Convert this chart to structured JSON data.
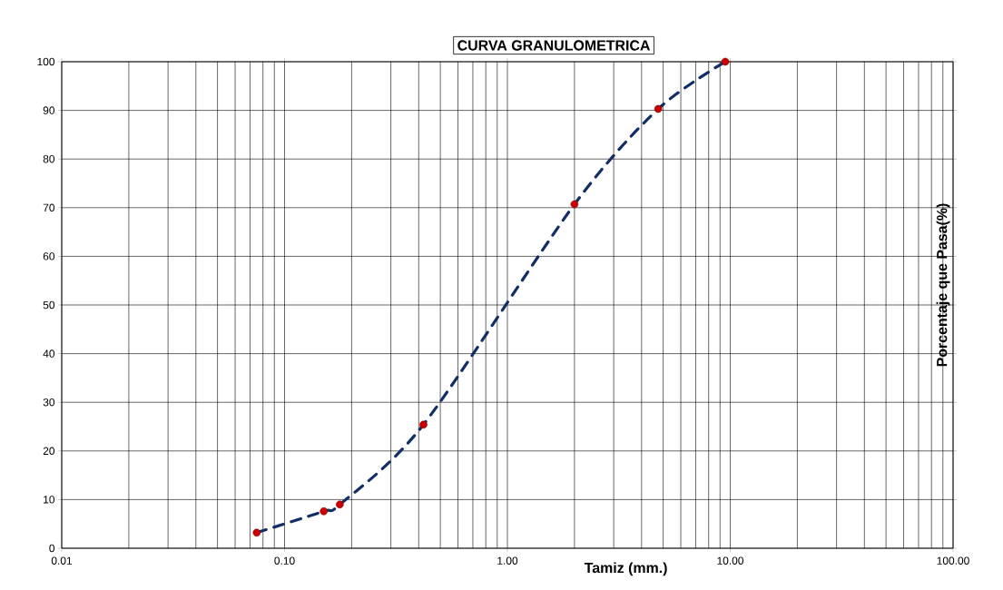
{
  "chart_data": {
    "type": "line",
    "title": "CURVA GRANULOMETRICA",
    "xlabel": "Tamiz (mm.)",
    "ylabel": "Porcentaje que Pasa(%)",
    "log": "x",
    "grid": true,
    "line_style": "dashed",
    "xlim": [
      0.01,
      100
    ],
    "ylim": [
      0,
      100
    ],
    "xticks": [
      {
        "value": 0.01,
        "label": "0.01"
      },
      {
        "value": 0.1,
        "label": "0.10"
      },
      {
        "value": 1,
        "label": "1.00"
      },
      {
        "value": 10,
        "label": "10.00"
      },
      {
        "value": 100,
        "label": "100.00"
      }
    ],
    "yticks": [
      0,
      10,
      20,
      30,
      40,
      50,
      60,
      70,
      80,
      90,
      100
    ],
    "x": [
      0.075,
      0.15,
      0.177,
      0.42,
      2.0,
      4.75,
      9.5
    ],
    "series": [
      {
        "color": "#112e66",
        "marker": "none",
        "values": [
          3.2,
          7.6,
          9.0,
          25.4,
          70.7,
          90.3,
          100
        ]
      },
      {
        "type": "scatter",
        "color": "#cc0000",
        "marker": "circle",
        "values": [
          3.2,
          7.6,
          9.0,
          25.4,
          70.7,
          90.3,
          100
        ]
      }
    ]
  }
}
